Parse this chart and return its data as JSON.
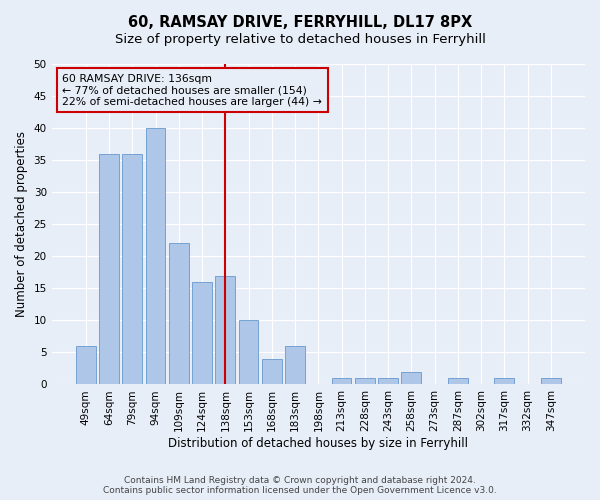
{
  "title": "60, RAMSAY DRIVE, FERRYHILL, DL17 8PX",
  "subtitle": "Size of property relative to detached houses in Ferryhill",
  "xlabel": "Distribution of detached houses by size in Ferryhill",
  "ylabel": "Number of detached properties",
  "bar_labels": [
    "49sqm",
    "64sqm",
    "79sqm",
    "94sqm",
    "109sqm",
    "124sqm",
    "138sqm",
    "153sqm",
    "168sqm",
    "183sqm",
    "198sqm",
    "213sqm",
    "228sqm",
    "243sqm",
    "258sqm",
    "273sqm",
    "287sqm",
    "302sqm",
    "317sqm",
    "332sqm",
    "347sqm"
  ],
  "bar_values": [
    6,
    36,
    36,
    40,
    22,
    16,
    17,
    10,
    4,
    6,
    0,
    1,
    1,
    1,
    2,
    0,
    1,
    0,
    1,
    0,
    1
  ],
  "bar_color": "#aec6e8",
  "bar_edge_color": "#6699cc",
  "vline_x_index": 6,
  "vline_color": "#cc0000",
  "ylim": [
    0,
    50
  ],
  "yticks": [
    0,
    5,
    10,
    15,
    20,
    25,
    30,
    35,
    40,
    45,
    50
  ],
  "annotation_box_text": "60 RAMSAY DRIVE: 136sqm\n← 77% of detached houses are smaller (154)\n22% of semi-detached houses are larger (44) →",
  "annotation_box_edge_color": "#cc0000",
  "footer_line1": "Contains HM Land Registry data © Crown copyright and database right 2024.",
  "footer_line2": "Contains public sector information licensed under the Open Government Licence v3.0.",
  "background_color": "#e8eef8",
  "grid_color": "#ffffff",
  "title_fontsize": 10.5,
  "subtitle_fontsize": 9.5,
  "xlabel_fontsize": 8.5,
  "ylabel_fontsize": 8.5,
  "tick_fontsize": 7.5,
  "annot_fontsize": 7.8,
  "footer_fontsize": 6.5
}
